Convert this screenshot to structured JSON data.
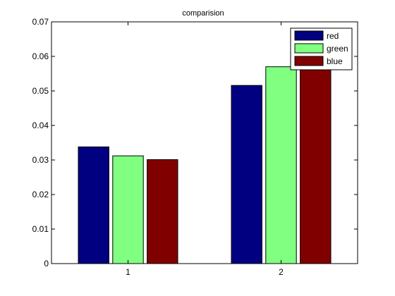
{
  "chart_data": {
    "type": "bar",
    "title": "comparision",
    "xlabel": "",
    "ylabel": "",
    "categories": [
      "1",
      "2"
    ],
    "ylim": [
      0,
      0.07
    ],
    "y_ticks": [
      "0",
      "0.01",
      "0.02",
      "0.03",
      "0.04",
      "0.05",
      "0.06",
      "0.07"
    ],
    "grid": false,
    "legend_position": "top-right",
    "series": [
      {
        "name": "red",
        "color": "#000080",
        "values": [
          0.0338,
          0.0516
        ]
      },
      {
        "name": "green",
        "color": "#80ff80",
        "values": [
          0.0312,
          0.057
        ]
      },
      {
        "name": "blue",
        "color": "#800000",
        "values": [
          0.0301,
          0.0634
        ]
      }
    ]
  }
}
